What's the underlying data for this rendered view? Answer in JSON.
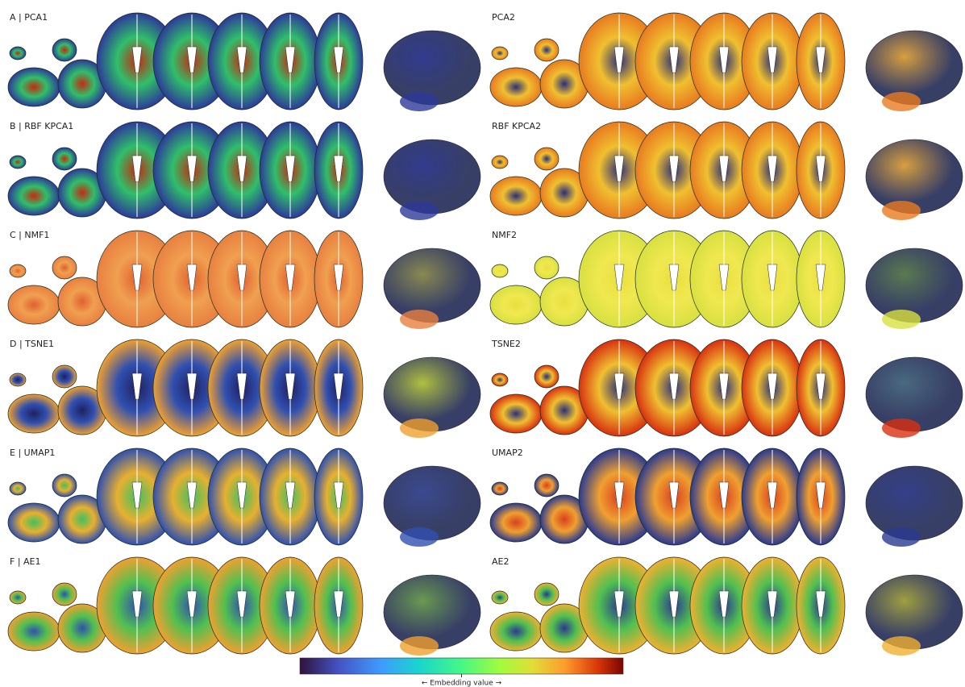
{
  "panels": [
    {
      "label": "A | PCA1"
    },
    {
      "label": "PCA2"
    },
    {
      "label": "B | RBF KPCA1"
    },
    {
      "label": "RBF KPCA2"
    },
    {
      "label": "C | NMF1"
    },
    {
      "label": "NMF2"
    },
    {
      "label": "D | TSNE1"
    },
    {
      "label": "TSNE2"
    },
    {
      "label": "E | UMAP1"
    },
    {
      "label": "UMAP2"
    },
    {
      "label": "F | AE1"
    },
    {
      "label": "AE2"
    }
  ],
  "colorbar": {
    "label": "← Embedding value →"
  }
}
